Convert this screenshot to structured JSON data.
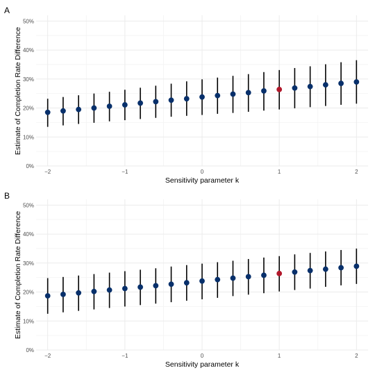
{
  "colors": {
    "point": "#08306b",
    "highlight": "#b2182b",
    "errorbar": "#000000",
    "grid": "#ebebeb",
    "background": "#ffffff"
  },
  "chart_data": [
    {
      "type": "scatter",
      "panel_tag": "A",
      "xlabel": "Sensitivity parameter k",
      "ylabel": "Estimate of Completion Rate Difference",
      "xlim": [
        -2.15,
        2.15
      ],
      "ylim": [
        0,
        0.52
      ],
      "x_ticks": [
        -2,
        -1,
        0,
        1,
        2
      ],
      "x_tick_labels": [
        "−2",
        "−1",
        "0",
        "1",
        "2"
      ],
      "y_ticks": [
        0,
        0.1,
        0.2,
        0.3,
        0.4,
        0.5
      ],
      "y_tick_labels": [
        "0%",
        "10%",
        "20%",
        "30%",
        "40%",
        "50%"
      ],
      "grid": true,
      "highlight_x": 1,
      "series": [
        {
          "x": [
            -2,
            -1.8,
            -1.6,
            -1.4,
            -1.2,
            -1,
            -0.8,
            -0.6,
            -0.4,
            -0.2,
            0,
            0.2,
            0.4,
            0.6,
            0.8,
            1,
            1.2,
            1.4,
            1.6,
            1.8,
            2
          ],
          "y": [
            0.185,
            0.19,
            0.195,
            0.2,
            0.206,
            0.211,
            0.217,
            0.222,
            0.227,
            0.232,
            0.238,
            0.243,
            0.248,
            0.253,
            0.259,
            0.264,
            0.269,
            0.274,
            0.28,
            0.285,
            0.29
          ],
          "lower": [
            0.135,
            0.14,
            0.145,
            0.149,
            0.154,
            0.158,
            0.162,
            0.166,
            0.17,
            0.173,
            0.176,
            0.18,
            0.183,
            0.187,
            0.191,
            0.195,
            0.199,
            0.203,
            0.207,
            0.211,
            0.215
          ],
          "upper": [
            0.232,
            0.238,
            0.244,
            0.25,
            0.256,
            0.263,
            0.27,
            0.277,
            0.284,
            0.292,
            0.299,
            0.305,
            0.311,
            0.317,
            0.324,
            0.331,
            0.338,
            0.344,
            0.351,
            0.358,
            0.365
          ]
        }
      ]
    },
    {
      "type": "scatter",
      "panel_tag": "B",
      "xlabel": "Sensitivity parameter k",
      "ylabel": "Estimate of Completion Rate Difference",
      "xlim": [
        -2.15,
        2.15
      ],
      "ylim": [
        0,
        0.52
      ],
      "x_ticks": [
        -2,
        -1,
        0,
        1,
        2
      ],
      "x_tick_labels": [
        "−2",
        "−1",
        "0",
        "1",
        "2"
      ],
      "y_ticks": [
        0,
        0.1,
        0.2,
        0.3,
        0.4,
        0.5
      ],
      "y_tick_labels": [
        "0%",
        "10%",
        "20%",
        "30%",
        "40%",
        "50%"
      ],
      "grid": true,
      "highlight_x": 1,
      "series": [
        {
          "x": [
            -2,
            -1.8,
            -1.6,
            -1.4,
            -1.2,
            -1,
            -0.8,
            -0.6,
            -0.4,
            -0.2,
            0,
            0.2,
            0.4,
            0.6,
            0.8,
            1,
            1.2,
            1.4,
            1.6,
            1.8,
            2
          ],
          "y": [
            0.187,
            0.192,
            0.197,
            0.202,
            0.207,
            0.212,
            0.217,
            0.222,
            0.227,
            0.232,
            0.238,
            0.243,
            0.248,
            0.253,
            0.258,
            0.264,
            0.269,
            0.274,
            0.279,
            0.284,
            0.289
          ],
          "lower": [
            0.125,
            0.13,
            0.135,
            0.14,
            0.145,
            0.15,
            0.155,
            0.16,
            0.165,
            0.17,
            0.175,
            0.18,
            0.186,
            0.191,
            0.196,
            0.202,
            0.207,
            0.212,
            0.218,
            0.223,
            0.228
          ],
          "upper": [
            0.248,
            0.252,
            0.257,
            0.262,
            0.267,
            0.272,
            0.277,
            0.282,
            0.288,
            0.293,
            0.298,
            0.303,
            0.308,
            0.314,
            0.319,
            0.324,
            0.33,
            0.335,
            0.34,
            0.345,
            0.35
          ]
        }
      ]
    }
  ]
}
